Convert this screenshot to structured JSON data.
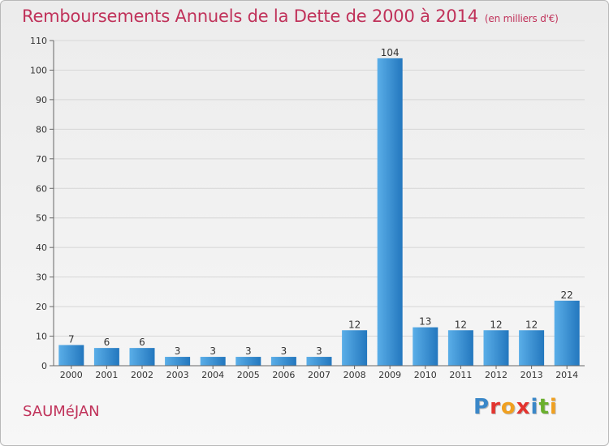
{
  "header": {
    "title": "Remboursements Annuels de la Dette de 2000 à 2014",
    "unit": "(en milliers d'€)"
  },
  "footer": {
    "commune": "SAUMéJAN",
    "logo": "Proxiti"
  },
  "colors": {
    "title": "#c0325a",
    "bar_light": "#5aaee8",
    "bar_dark": "#2377be",
    "axis": "#666666",
    "grid": "#d6d6d6"
  },
  "chart_data": {
    "type": "bar",
    "categories": [
      "2000",
      "2001",
      "2002",
      "2003",
      "2004",
      "2005",
      "2006",
      "2007",
      "2008",
      "2009",
      "2010",
      "2011",
      "2012",
      "2013",
      "2014"
    ],
    "values": [
      7,
      6,
      6,
      3,
      3,
      3,
      3,
      3,
      12,
      104,
      13,
      12,
      12,
      12,
      22
    ],
    "data_labels": [
      "7",
      "6",
      "6",
      "3",
      "3",
      "3",
      "3",
      "3",
      "12",
      "104",
      "13",
      "12",
      "12",
      "12",
      "22"
    ],
    "yticks": [
      0,
      10,
      20,
      30,
      40,
      50,
      60,
      70,
      80,
      90,
      100,
      110
    ],
    "ylim": [
      0,
      110
    ],
    "grid": true,
    "title": "Remboursements Annuels de la Dette de 2000 à 2014",
    "xlabel": "",
    "ylabel": ""
  }
}
